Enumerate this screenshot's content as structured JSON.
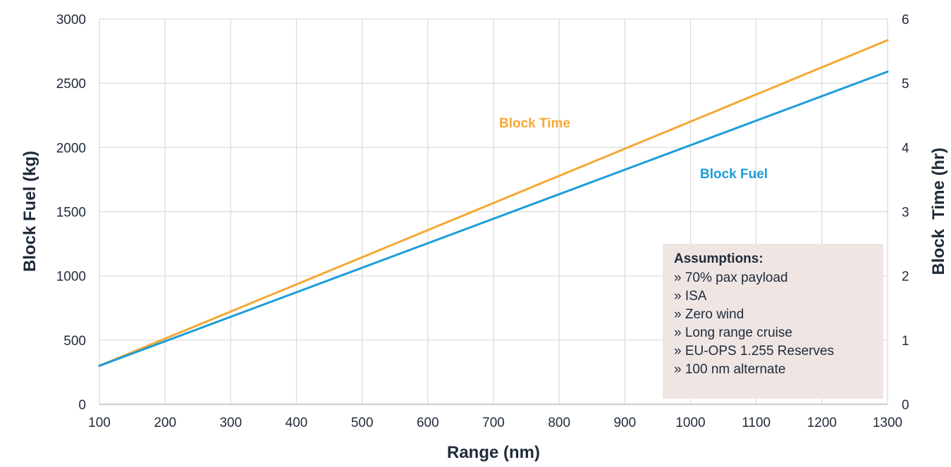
{
  "chart_data": {
    "type": "line",
    "xlabel": "Range (nm)",
    "ylabel": "Block Fuel (kg)",
    "y2label": "Block  Time (hr)",
    "xlim": [
      100,
      1300
    ],
    "ylim": [
      0,
      3000
    ],
    "y2lim": [
      0,
      6
    ],
    "xticks": [
      100,
      200,
      300,
      400,
      500,
      600,
      700,
      800,
      900,
      1000,
      1100,
      1200,
      1300
    ],
    "yticks": [
      0,
      500,
      1000,
      1500,
      2000,
      2500,
      3000
    ],
    "y2ticks": [
      0,
      1,
      2,
      3,
      4,
      5,
      6
    ],
    "grid": true,
    "series": [
      {
        "name": "Block Time",
        "axis": "right",
        "color": "#f5a833",
        "x": [
          100,
          1300
        ],
        "values": [
          0.6,
          5.67
        ]
      },
      {
        "name": "Block Fuel",
        "axis": "left",
        "color": "#1b9dd9",
        "x": [
          100,
          1300
        ],
        "values": [
          300,
          2590
        ]
      }
    ],
    "assumptions": {
      "title": "Assumptions:",
      "items": [
        "» 70% pax payload",
        "» ISA",
        "» Zero wind",
        "» Long range cruise",
        "» EU-OPS 1.255 Reserves",
        "» 100 nm alternate"
      ],
      "background": "#efe6e4"
    }
  }
}
